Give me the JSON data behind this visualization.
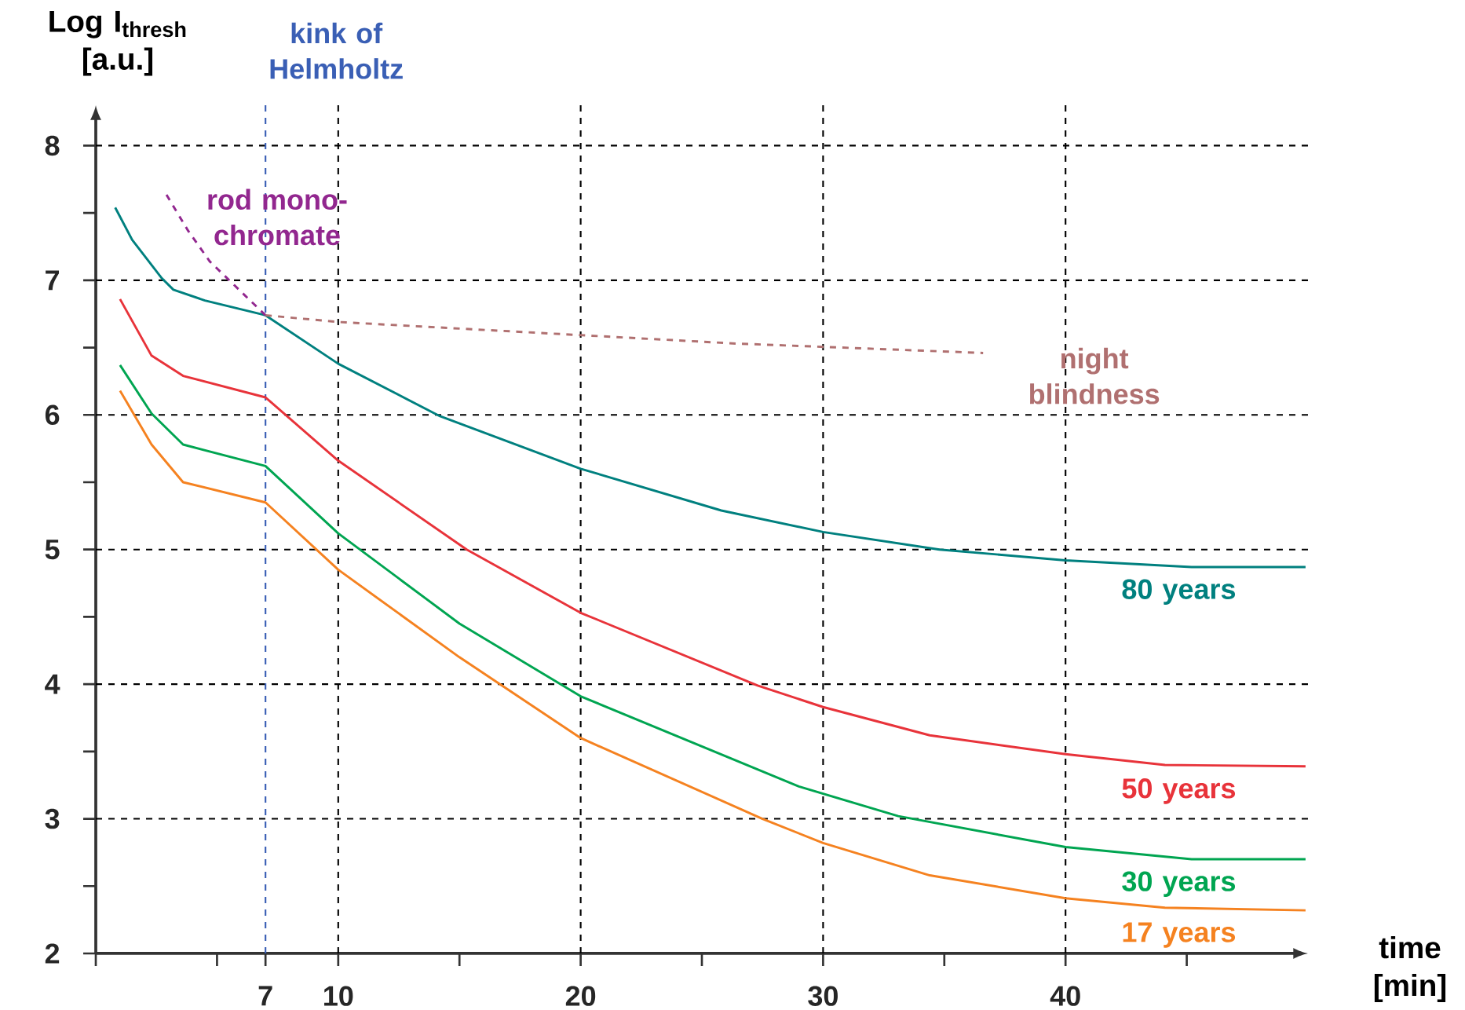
{
  "chart_data": {
    "type": "line",
    "xlabel": "time [min]",
    "ylabel": "Log I$_{thresh}$ [a.u.]",
    "xlim": [
      0,
      50
    ],
    "ylim": [
      2,
      8.3
    ],
    "xticks": [
      {
        "value": 0,
        "label": null
      },
      {
        "value": 5,
        "label": null
      },
      7,
      10,
      {
        "value": 15,
        "label": null
      },
      20,
      {
        "value": 25,
        "label": null
      },
      30,
      {
        "value": 35,
        "label": null
      },
      40,
      {
        "value": 45,
        "label": null
      }
    ],
    "yticks": [
      2,
      {
        "value": 2.5,
        "label": null
      },
      3,
      {
        "value": 3.5,
        "label": null
      },
      4,
      {
        "value": 4.5,
        "label": null
      },
      5,
      {
        "value": 5.5,
        "label": null
      },
      6,
      {
        "value": 6.5,
        "label": null
      },
      7,
      {
        "value": 7.5,
        "label": null
      },
      8
    ],
    "grid": true,
    "marker": "none",
    "line_style": "solid",
    "ref_lines": [
      {
        "axis": "x",
        "value": 7,
        "label": "kink of Helmholtz",
        "color": "#3a5fb5",
        "line_style": "dashed"
      }
    ],
    "series": [
      {
        "name": "80 years",
        "color": "#00807f",
        "x": [
          0.8,
          1.5,
          2.7,
          3.2,
          4.5,
          7,
          10,
          14.2,
          20,
          25.8,
          30,
          34.8,
          40,
          45.2,
          49.9
        ],
        "values": [
          7.54,
          7.3,
          7.02,
          6.93,
          6.85,
          6.74,
          6.38,
          5.99,
          5.6,
          5.29,
          5.13,
          5.0,
          4.92,
          4.87,
          4.87
        ]
      },
      {
        "name": "50 years",
        "color": "#e8333a",
        "x": [
          1.0,
          2.3,
          3.6,
          7,
          10,
          15.3,
          20,
          27.3,
          30,
          34.4,
          40,
          44.1,
          49.9
        ],
        "values": [
          6.86,
          6.44,
          6.29,
          6.13,
          5.66,
          5.0,
          4.53,
          3.99,
          3.83,
          3.62,
          3.48,
          3.4,
          3.39
        ]
      },
      {
        "name": "30 years",
        "color": "#00a551",
        "x": [
          1.0,
          2.3,
          3.6,
          7,
          10,
          15,
          20,
          29,
          33.1,
          40,
          45.2,
          49.9
        ],
        "values": [
          6.37,
          6.01,
          5.78,
          5.62,
          5.12,
          4.45,
          3.91,
          3.24,
          3.02,
          2.79,
          2.7,
          2.7
        ]
      },
      {
        "name": "17 years",
        "color": "#f58220",
        "x": [
          1.0,
          2.3,
          3.6,
          7,
          10,
          15,
          20,
          27.5,
          30,
          34.4,
          40,
          44.1,
          49.9
        ],
        "values": [
          6.18,
          5.78,
          5.5,
          5.35,
          4.85,
          4.2,
          3.6,
          3.0,
          2.82,
          2.58,
          2.41,
          2.34,
          2.32
        ]
      },
      {
        "name": "rod mono-chromate",
        "color": "#92278f",
        "line_style": "dashed",
        "x": [
          7,
          4.7,
          3.8,
          2.9
        ],
        "values": [
          6.74,
          7.14,
          7.37,
          7.64
        ]
      },
      {
        "name": "night blindness",
        "color": "#b07070",
        "line_style": "dashed",
        "x": [
          7,
          10,
          26.4,
          36.6
        ],
        "values": [
          6.74,
          6.69,
          6.53,
          6.46
        ]
      }
    ]
  }
}
